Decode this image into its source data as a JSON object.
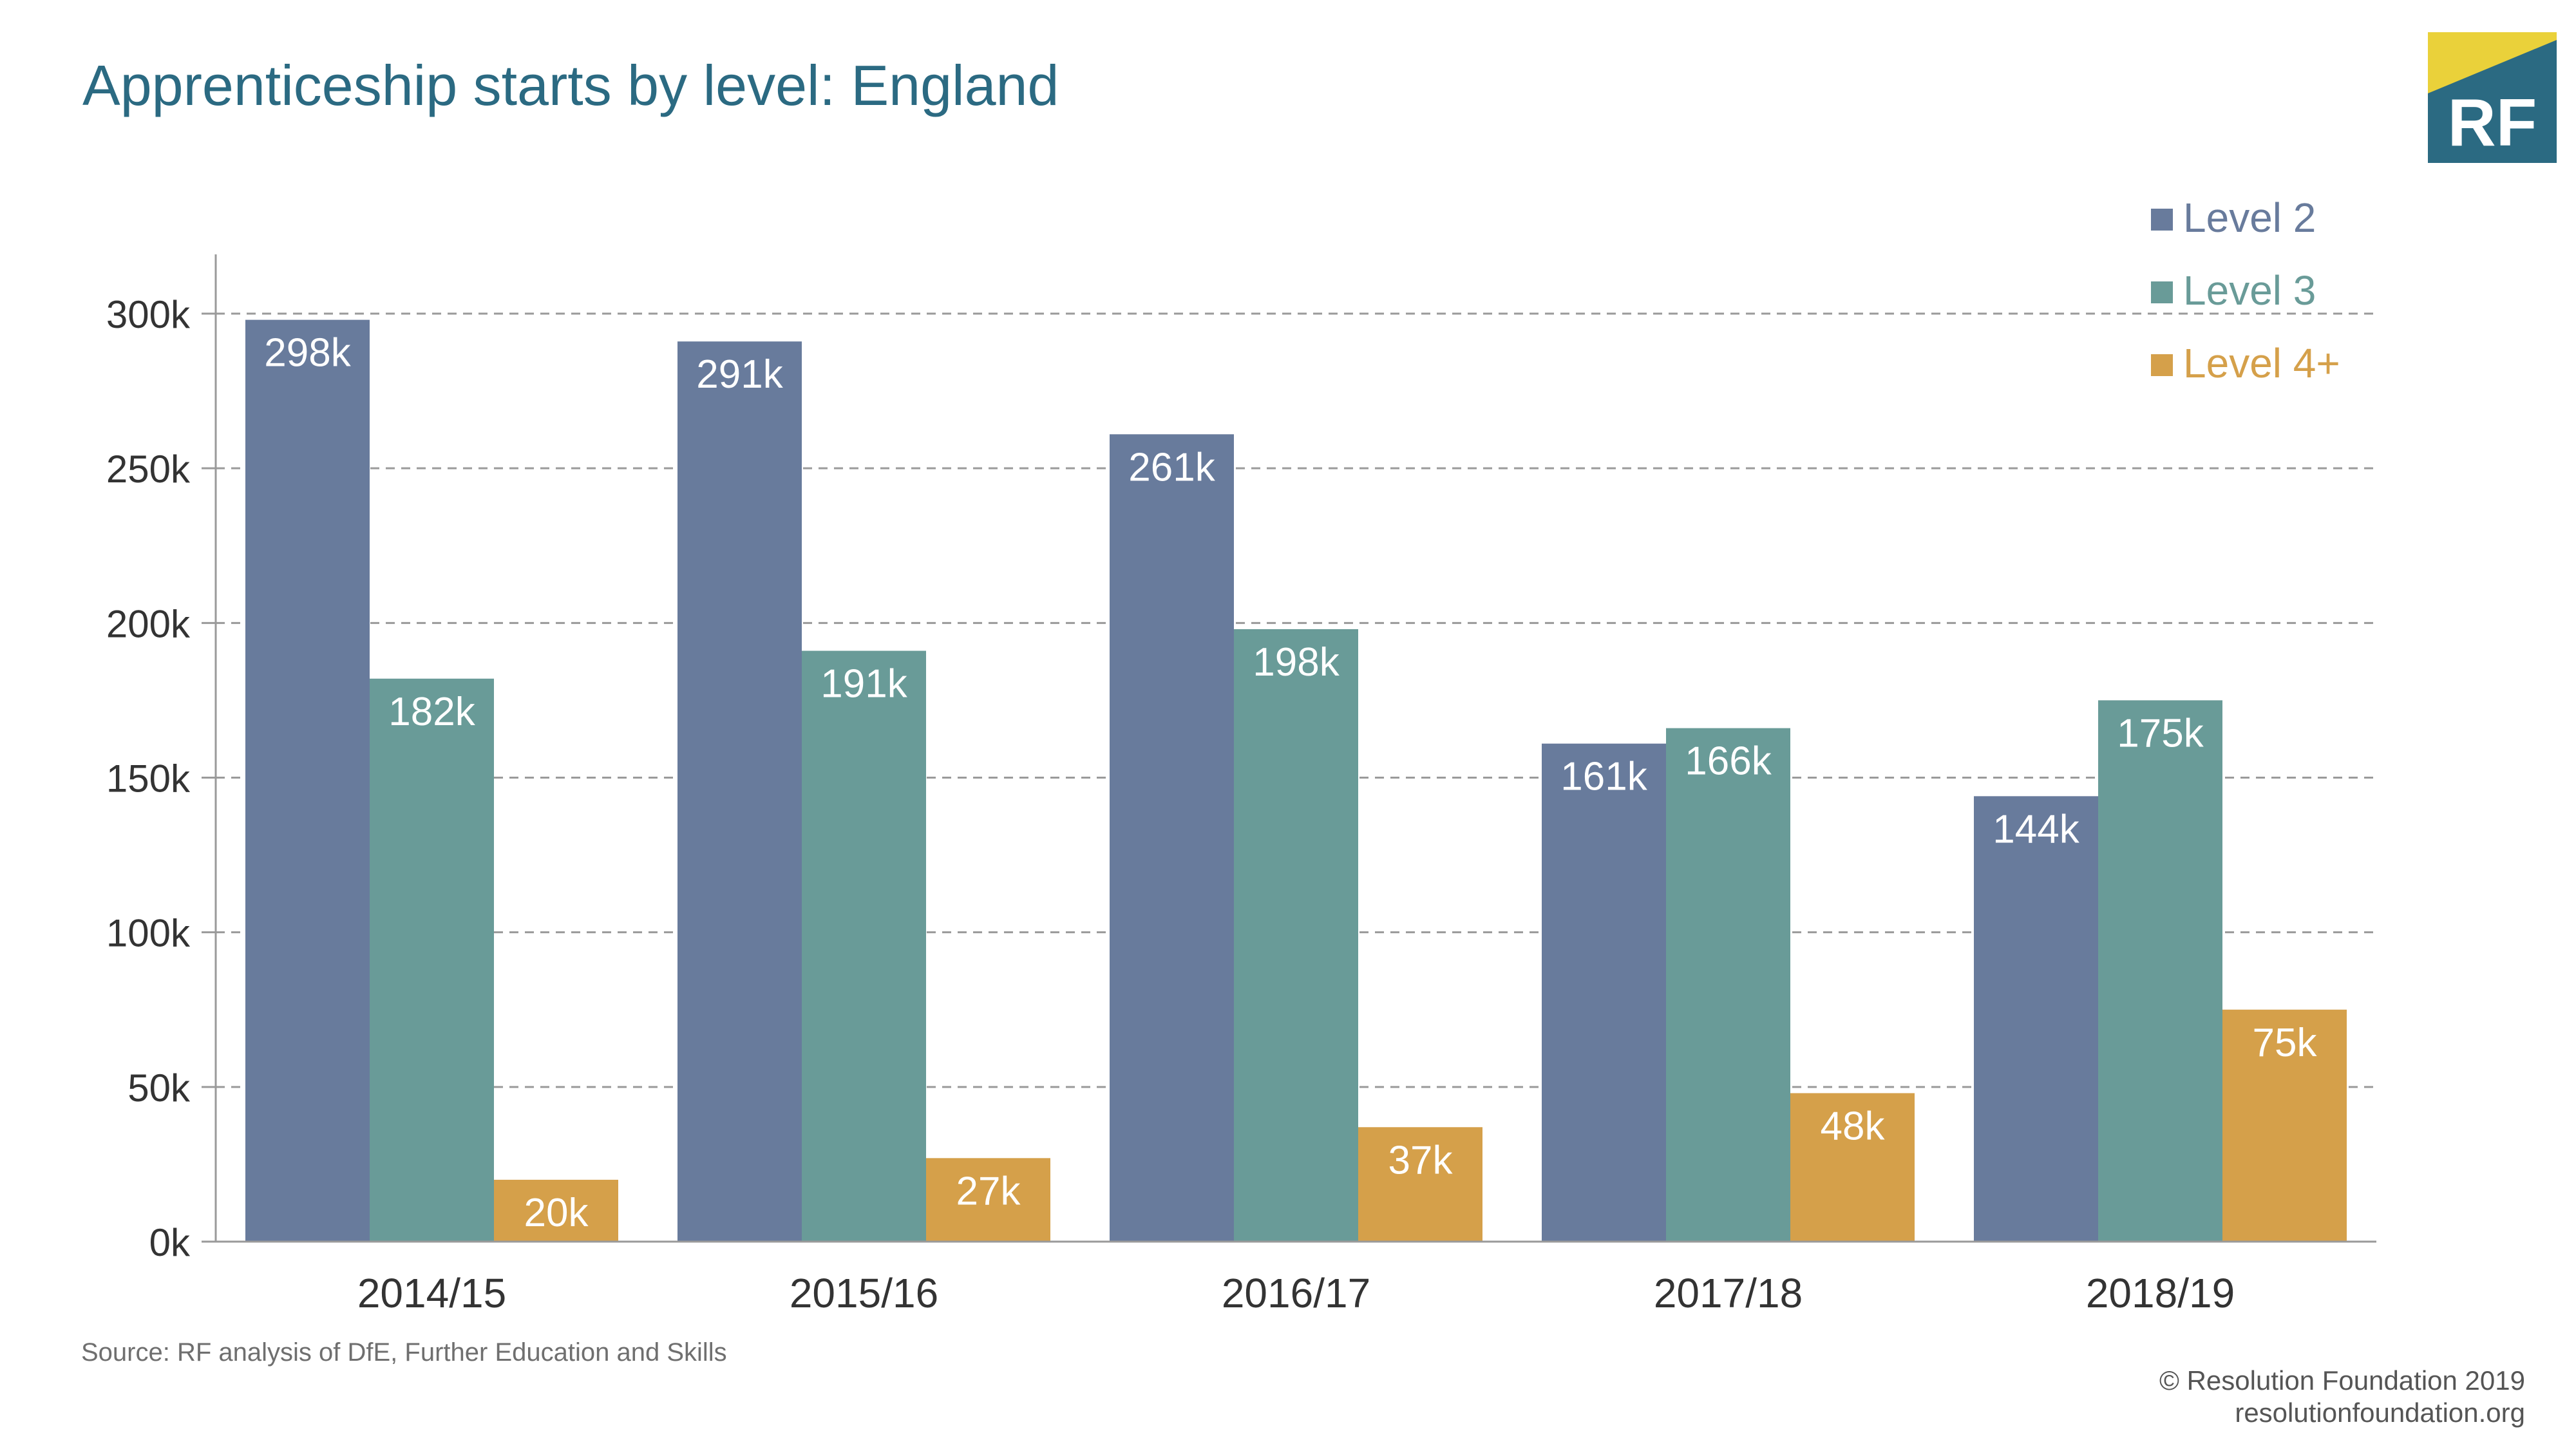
{
  "title": "Apprenticeship starts by level: England",
  "logo": {
    "text": "RF",
    "colors": {
      "dark": "#2b6a82",
      "accent": "#ead13a"
    }
  },
  "source": "Source: RF analysis of DfE, Further Education and Skills",
  "credit": {
    "copyright": "© Resolution Foundation 2019",
    "website": "resolutionfoundation.org"
  },
  "chart_data": {
    "type": "bar",
    "title": "Apprenticeship starts by level: England",
    "xlabel": "",
    "ylabel": "",
    "ylim": [
      0,
      320000
    ],
    "yticks": [
      {
        "value": 0,
        "label": "0k"
      },
      {
        "value": 50000,
        "label": "50k"
      },
      {
        "value": 100000,
        "label": "100k"
      },
      {
        "value": 150000,
        "label": "150k"
      },
      {
        "value": 200000,
        "label": "200k"
      },
      {
        "value": 250000,
        "label": "250k"
      },
      {
        "value": 300000,
        "label": "300k"
      }
    ],
    "grid": "horizontal dashed",
    "legend_position": "top-right",
    "categories": [
      "2014/15",
      "2015/16",
      "2016/17",
      "2017/18",
      "2018/19"
    ],
    "series": [
      {
        "name": "Level 2",
        "color": "#687b9c",
        "values": [
          298000,
          291000,
          261000,
          161000,
          144000
        ],
        "labels": [
          "298k",
          "291k",
          "261k",
          "161k",
          "144k"
        ]
      },
      {
        "name": "Level 3",
        "color": "#699b98",
        "values": [
          182000,
          191000,
          198000,
          166000,
          175000
        ],
        "labels": [
          "182k",
          "191k",
          "198k",
          "166k",
          "175k"
        ]
      },
      {
        "name": "Level 4+",
        "color": "#d5a04a",
        "values": [
          20000,
          27000,
          37000,
          48000,
          75000
        ],
        "labels": [
          "20k",
          "27k",
          "37k",
          "48k",
          "75k"
        ]
      }
    ]
  }
}
